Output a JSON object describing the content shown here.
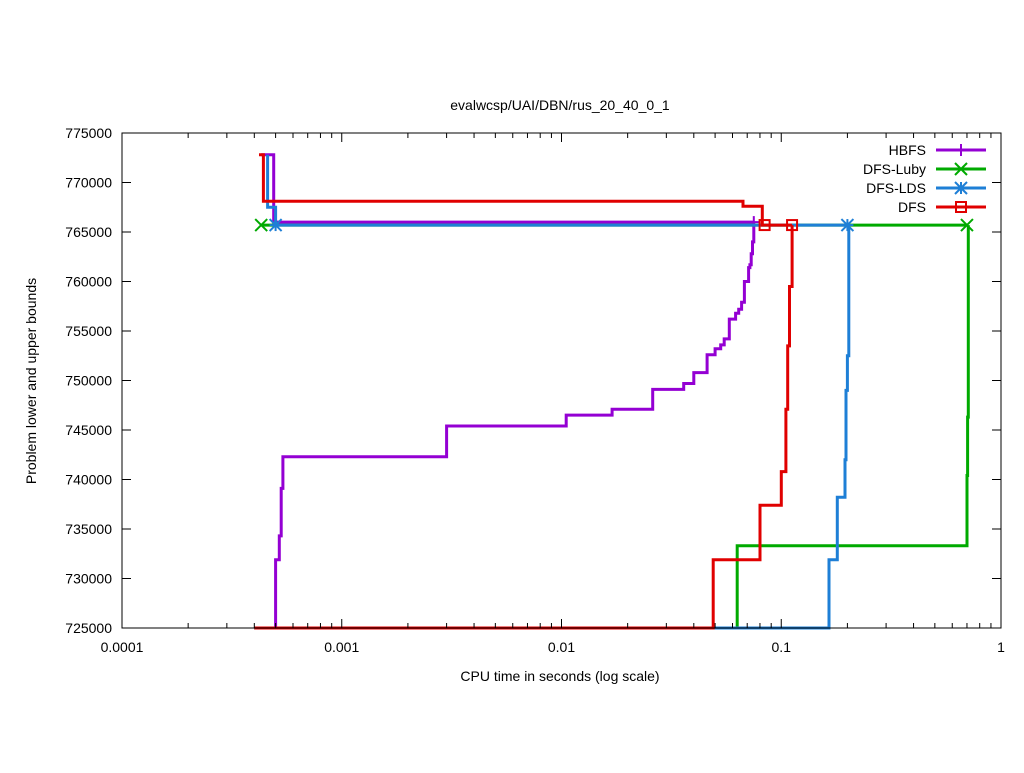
{
  "chart_data": {
    "type": "line",
    "title": "evalwcsp/UAI/DBN/rus_20_40_0_1",
    "xlabel": "CPU time in seconds (log scale)",
    "ylabel": "Problem lower and upper bounds",
    "xscale": "log",
    "xlim": [
      0.0001,
      1
    ],
    "ylim": [
      725000,
      775000
    ],
    "xticks": [
      0.0001,
      0.001,
      0.01,
      0.1,
      1
    ],
    "xtick_labels": [
      "0.0001",
      "0.001",
      "0.01",
      "0.1",
      "1"
    ],
    "yticks": [
      725000,
      730000,
      735000,
      740000,
      745000,
      750000,
      755000,
      760000,
      765000,
      770000,
      775000
    ],
    "ytick_labels": [
      "725000",
      "730000",
      "735000",
      "740000",
      "745000",
      "750000",
      "755000",
      "760000",
      "765000",
      "770000",
      "775000"
    ],
    "grid": false,
    "legend_position": "top-right",
    "series": [
      {
        "name": "HBFS",
        "color": "#9400d3",
        "marker": "plus",
        "upper": [
          [
            0.00043,
            772800
          ],
          [
            0.00049,
            772800
          ],
          [
            0.00049,
            766000
          ],
          [
            0.075,
            766000
          ]
        ],
        "lower": [
          [
            0.0004,
            725000
          ],
          [
            0.0005,
            725000
          ],
          [
            0.0005,
            731900
          ],
          [
            0.00052,
            731900
          ],
          [
            0.00052,
            734300
          ],
          [
            0.00053,
            734300
          ],
          [
            0.00053,
            739100
          ],
          [
            0.00054,
            739100
          ],
          [
            0.00054,
            742300
          ],
          [
            0.003,
            742300
          ],
          [
            0.003,
            745400
          ],
          [
            0.0105,
            745400
          ],
          [
            0.0105,
            746500
          ],
          [
            0.017,
            746500
          ],
          [
            0.017,
            747100
          ],
          [
            0.026,
            747100
          ],
          [
            0.026,
            749100
          ],
          [
            0.036,
            749100
          ],
          [
            0.036,
            749700
          ],
          [
            0.04,
            749700
          ],
          [
            0.04,
            750800
          ],
          [
            0.046,
            750800
          ],
          [
            0.046,
            752600
          ],
          [
            0.05,
            752600
          ],
          [
            0.05,
            753200
          ],
          [
            0.053,
            753200
          ],
          [
            0.053,
            753600
          ],
          [
            0.055,
            753600
          ],
          [
            0.055,
            754200
          ],
          [
            0.058,
            754200
          ],
          [
            0.058,
            756200
          ],
          [
            0.062,
            756200
          ],
          [
            0.062,
            756800
          ],
          [
            0.064,
            756800
          ],
          [
            0.064,
            757200
          ],
          [
            0.066,
            757200
          ],
          [
            0.066,
            757900
          ],
          [
            0.068,
            757900
          ],
          [
            0.068,
            760000
          ],
          [
            0.071,
            760000
          ],
          [
            0.071,
            761400
          ],
          [
            0.072,
            761400
          ],
          [
            0.072,
            761700
          ],
          [
            0.073,
            761700
          ],
          [
            0.073,
            762800
          ],
          [
            0.074,
            762800
          ],
          [
            0.074,
            764000
          ],
          [
            0.075,
            764000
          ],
          [
            0.075,
            766000
          ]
        ],
        "points": [
          [
            0.075,
            766000
          ]
        ]
      },
      {
        "name": "DFS-Luby",
        "color": "#00aa00",
        "marker": "x",
        "upper": [
          [
            0.00043,
            765700
          ],
          [
            0.7,
            765700
          ]
        ],
        "lower": [
          [
            0.0004,
            725000
          ],
          [
            0.063,
            725000
          ],
          [
            0.063,
            733300
          ],
          [
            0.7,
            733300
          ],
          [
            0.7,
            740400
          ],
          [
            0.705,
            740400
          ],
          [
            0.705,
            746300
          ],
          [
            0.71,
            746300
          ],
          [
            0.71,
            765700
          ]
        ],
        "points": [
          [
            0.00043,
            765700
          ],
          [
            0.7,
            765700
          ]
        ]
      },
      {
        "name": "DFS-LDS",
        "color": "#1e7fd6",
        "marker": "star",
        "upper": [
          [
            0.00046,
            772800
          ],
          [
            0.00046,
            767500
          ],
          [
            0.0005,
            767500
          ],
          [
            0.0005,
            765700
          ],
          [
            0.2,
            765700
          ]
        ],
        "lower": [
          [
            0.0004,
            725000
          ],
          [
            0.165,
            725000
          ],
          [
            0.165,
            731900
          ],
          [
            0.18,
            731900
          ],
          [
            0.18,
            738200
          ],
          [
            0.195,
            738200
          ],
          [
            0.195,
            742000
          ],
          [
            0.197,
            742000
          ],
          [
            0.197,
            749000
          ],
          [
            0.2,
            749000
          ],
          [
            0.2,
            752500
          ],
          [
            0.203,
            752500
          ],
          [
            0.203,
            765700
          ]
        ],
        "points": [
          [
            0.0005,
            765700
          ],
          [
            0.2,
            765700
          ]
        ]
      },
      {
        "name": "DFS",
        "color": "#e00000",
        "marker": "square",
        "upper": [
          [
            0.00042,
            772800
          ],
          [
            0.00044,
            772800
          ],
          [
            0.00044,
            768100
          ],
          [
            0.067,
            768100
          ],
          [
            0.067,
            767600
          ],
          [
            0.082,
            767600
          ],
          [
            0.082,
            765700
          ],
          [
            0.112,
            765700
          ]
        ],
        "lower": [
          [
            0.0004,
            725000
          ],
          [
            0.049,
            725000
          ],
          [
            0.049,
            731900
          ],
          [
            0.08,
            731900
          ],
          [
            0.08,
            737400
          ],
          [
            0.1,
            737400
          ],
          [
            0.1,
            740800
          ],
          [
            0.105,
            740800
          ],
          [
            0.105,
            747100
          ],
          [
            0.107,
            747100
          ],
          [
            0.107,
            753500
          ],
          [
            0.109,
            753500
          ],
          [
            0.109,
            759500
          ],
          [
            0.112,
            759500
          ],
          [
            0.112,
            765700
          ]
        ],
        "points": [
          [
            0.084,
            765700
          ],
          [
            0.112,
            765700
          ]
        ]
      }
    ]
  }
}
